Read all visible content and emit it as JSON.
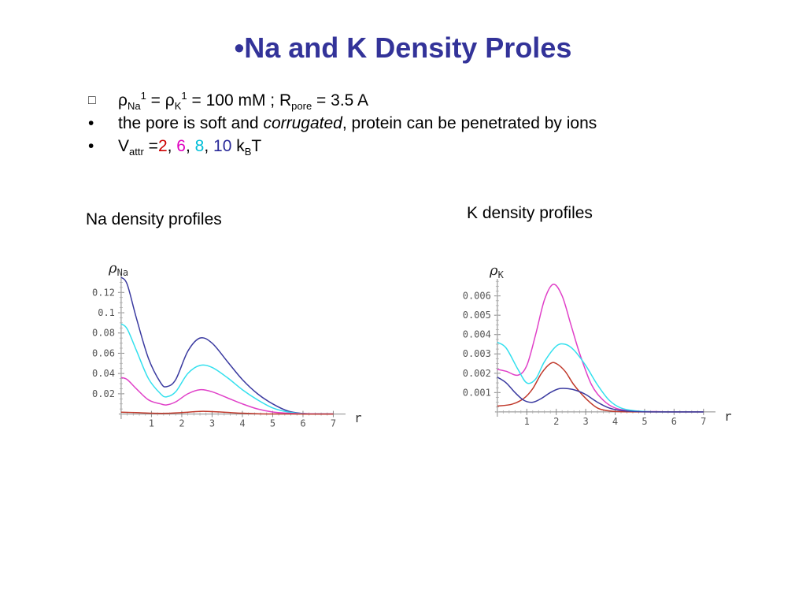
{
  "slide": {
    "title": "•Na and K Density Proles",
    "bullets": [
      {
        "marker": "□",
        "parts": {
          "rho1": "ρ",
          "sub1": "Na",
          "sup1": "1",
          "eq1": " = ",
          "rho2": "ρ",
          "sub2": "K",
          "sup2": "1",
          "eq2": " = 100 mM ; R",
          "sub3": "pore",
          "tail": " = 3.5 A"
        }
      },
      {
        "marker": "•",
        "parts": {
          "a": "the pore is soft and ",
          "b": "corrugated",
          "c": ", protein can be penetrated by ions"
        }
      },
      {
        "marker": "•",
        "parts": {
          "v": "V",
          "vsub": "attr",
          "eq": " =",
          "n1": "2",
          "s1": ", ",
          "n2": "6",
          "s2": ", ",
          "n3": "8",
          "s3": ", ",
          "n4": "10",
          "k": " k",
          "ksub": "B",
          "t": "T"
        }
      }
    ],
    "caption_na": "Na density profiles",
    "caption_k": "K density profiles"
  },
  "colors": {
    "red": "#c0392b",
    "magenta": "#e040c8",
    "cyan": "#33e0ee",
    "navy": "#3a3aa0"
  },
  "chart_data": [
    {
      "type": "line",
      "title": "",
      "ylabel_symbol": "ρ",
      "ylabel_sub": "Na",
      "xlabel": "r",
      "xlim": [
        -0.05,
        7.3
      ],
      "ylim": [
        -0.005,
        0.135
      ],
      "xticks": [
        1,
        2,
        3,
        4,
        5,
        6,
        7
      ],
      "yticks": [
        0.02,
        0.04,
        0.06,
        0.08,
        0.1,
        0.12
      ],
      "ytick_labels": [
        "0.02",
        "0.04",
        "0.06",
        "0.08",
        "0.1",
        "0.12"
      ],
      "series": [
        {
          "color": "#3a3aa0",
          "x": [
            0,
            0.2,
            0.5,
            0.9,
            1.3,
            1.5,
            1.8,
            2.2,
            2.6,
            3.0,
            3.5,
            4.0,
            4.5,
            5.0,
            5.5,
            6.0,
            6.5,
            7.0
          ],
          "y": [
            0.135,
            0.128,
            0.095,
            0.055,
            0.031,
            0.027,
            0.034,
            0.062,
            0.075,
            0.07,
            0.052,
            0.034,
            0.02,
            0.01,
            0.003,
            0.0005,
            0.0002,
            0.0001
          ]
        },
        {
          "color": "#33e0ee",
          "x": [
            0,
            0.2,
            0.5,
            0.9,
            1.3,
            1.5,
            1.8,
            2.2,
            2.6,
            3.0,
            3.5,
            4.0,
            4.5,
            5.0,
            5.5,
            6.0,
            6.5,
            7.0
          ],
          "y": [
            0.089,
            0.084,
            0.063,
            0.035,
            0.02,
            0.017,
            0.022,
            0.04,
            0.048,
            0.046,
            0.036,
            0.024,
            0.014,
            0.006,
            0.002,
            0.0004,
            0.0001,
            0.0001
          ]
        },
        {
          "color": "#e040c8",
          "x": [
            0,
            0.2,
            0.5,
            0.9,
            1.3,
            1.5,
            1.8,
            2.2,
            2.6,
            3.0,
            3.5,
            4.0,
            4.5,
            5.0,
            5.5,
            6.0,
            6.5,
            7.0
          ],
          "y": [
            0.036,
            0.034,
            0.025,
            0.014,
            0.01,
            0.009,
            0.012,
            0.02,
            0.024,
            0.022,
            0.016,
            0.01,
            0.005,
            0.002,
            0.0008,
            0.0002,
            0.0001,
            0.0001
          ]
        },
        {
          "color": "#c0392b",
          "x": [
            0,
            0.5,
            1.0,
            1.5,
            2.0,
            2.6,
            3.0,
            3.5,
            4.0,
            4.5,
            5.0,
            6.0,
            7.0
          ],
          "y": [
            0.0018,
            0.0014,
            0.0008,
            0.0007,
            0.0014,
            0.0026,
            0.0024,
            0.0016,
            0.0008,
            0.0003,
            0.0001,
            0.0,
            0.0
          ]
        }
      ]
    },
    {
      "type": "line",
      "title": "",
      "ylabel_symbol": "ρ",
      "ylabel_sub": "K",
      "xlabel": "r",
      "xlim": [
        -0.05,
        7.3
      ],
      "ylim": [
        -0.00025,
        0.0068
      ],
      "xticks": [
        1,
        2,
        3,
        4,
        5,
        6,
        7
      ],
      "yticks": [
        0.001,
        0.002,
        0.003,
        0.004,
        0.005,
        0.006
      ],
      "ytick_labels": [
        "0.001",
        "0.002",
        "0.003",
        "0.004",
        "0.005",
        "0.006"
      ],
      "series": [
        {
          "color": "#e040c8",
          "x": [
            0,
            0.3,
            0.7,
            1.0,
            1.3,
            1.6,
            1.9,
            2.2,
            2.5,
            2.8,
            3.2,
            3.6,
            4.0,
            4.5,
            5.0,
            5.5,
            6.0,
            7.0
          ],
          "y": [
            0.0022,
            0.0021,
            0.0019,
            0.0024,
            0.004,
            0.0058,
            0.0066,
            0.006,
            0.0045,
            0.003,
            0.0014,
            0.0006,
            0.0002,
            5e-05,
            2e-05,
            1e-05,
            0.0,
            0.0
          ]
        },
        {
          "color": "#33e0ee",
          "x": [
            0,
            0.3,
            0.7,
            1.0,
            1.3,
            1.6,
            2.0,
            2.3,
            2.6,
            3.0,
            3.4,
            3.8,
            4.2,
            4.7,
            5.2,
            6.0,
            7.0
          ],
          "y": [
            0.0036,
            0.0033,
            0.0022,
            0.0015,
            0.0017,
            0.0026,
            0.0034,
            0.0035,
            0.0032,
            0.0024,
            0.0014,
            0.0006,
            0.0002,
            5e-05,
            1e-05,
            0.0,
            0.0
          ]
        },
        {
          "color": "#c0392b",
          "x": [
            0,
            0.5,
            0.9,
            1.2,
            1.5,
            1.8,
            2.0,
            2.3,
            2.6,
            3.0,
            3.4,
            3.8,
            4.2,
            4.8,
            5.5,
            7.0
          ],
          "y": [
            0.0003,
            0.0004,
            0.0007,
            0.0012,
            0.002,
            0.0025,
            0.0025,
            0.0021,
            0.0014,
            0.0007,
            0.0002,
            5e-05,
            1e-05,
            0.0,
            0.0,
            0.0
          ]
        },
        {
          "color": "#3a3aa0",
          "x": [
            0,
            0.3,
            0.6,
            0.9,
            1.2,
            1.5,
            1.8,
            2.1,
            2.4,
            2.7,
            3.0,
            3.4,
            3.8,
            4.2,
            4.7,
            5.2,
            6.0,
            7.0
          ],
          "y": [
            0.0018,
            0.0015,
            0.001,
            0.0006,
            0.0005,
            0.0007,
            0.001,
            0.0012,
            0.0012,
            0.0011,
            0.0009,
            0.0005,
            0.0002,
            7e-05,
            2e-05,
            0.0,
            0.0,
            0.0
          ]
        }
      ]
    }
  ]
}
